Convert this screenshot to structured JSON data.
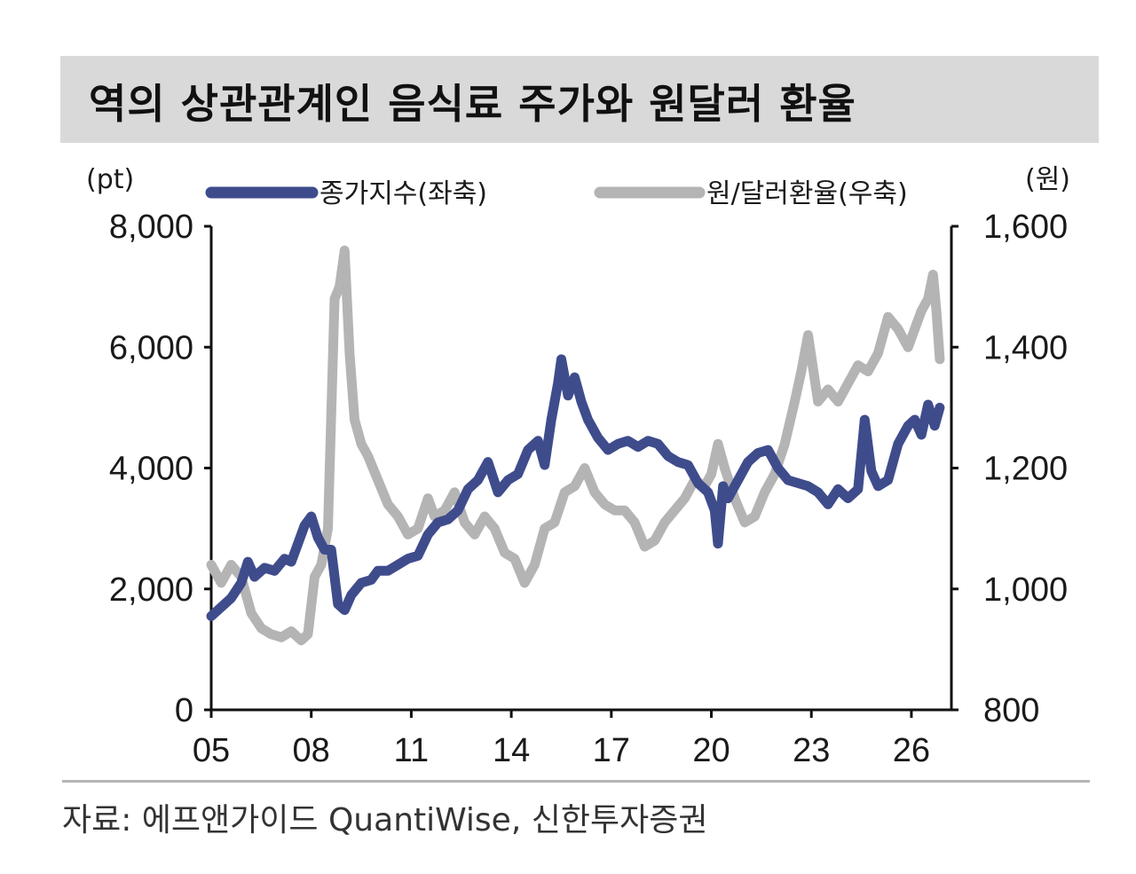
{
  "chart_data": {
    "type": "line",
    "title": "역의 상관관계인 음식료 주가와 원달러 환율",
    "left_unit": "(pt)",
    "right_unit": "(원)",
    "x_ticks": [
      "05",
      "08",
      "11",
      "14",
      "17",
      "20",
      "23",
      "26"
    ],
    "x_range": [
      2005,
      2027.2
    ],
    "left_axis": {
      "min": 0,
      "max": 8000,
      "ticks": [
        "0",
        "2,000",
        "4,000",
        "6,000",
        "8,000"
      ],
      "tick_values": [
        0,
        2000,
        4000,
        6000,
        8000
      ]
    },
    "right_axis": {
      "min": 800,
      "max": 1600,
      "ticks": [
        "800",
        "1,000",
        "1,200",
        "1,400",
        "1,600"
      ],
      "tick_values": [
        800,
        1000,
        1200,
        1400,
        1600
      ]
    },
    "grid": false,
    "legend_position": "top",
    "series": [
      {
        "name": "종가지수(좌축)",
        "axis": "left",
        "color": "#3f4c8c",
        "x": [
          2005.0,
          2005.3,
          2005.6,
          2005.9,
          2006.1,
          2006.3,
          2006.6,
          2006.9,
          2007.2,
          2007.4,
          2007.6,
          2007.8,
          2008.0,
          2008.2,
          2008.4,
          2008.6,
          2008.8,
          2009.0,
          2009.2,
          2009.5,
          2009.8,
          2010.0,
          2010.3,
          2010.6,
          2010.9,
          2011.2,
          2011.5,
          2011.8,
          2012.1,
          2012.4,
          2012.7,
          2013.0,
          2013.3,
          2013.6,
          2013.9,
          2014.2,
          2014.5,
          2014.8,
          2015.0,
          2015.2,
          2015.4,
          2015.5,
          2015.7,
          2015.9,
          2016.1,
          2016.3,
          2016.6,
          2016.9,
          2017.2,
          2017.5,
          2017.8,
          2018.1,
          2018.4,
          2018.7,
          2019.0,
          2019.3,
          2019.6,
          2019.9,
          2020.1,
          2020.2,
          2020.35,
          2020.5,
          2020.8,
          2021.1,
          2021.4,
          2021.7,
          2022.0,
          2022.3,
          2022.6,
          2022.9,
          2023.2,
          2023.5,
          2023.8,
          2024.1,
          2024.4,
          2024.6,
          2024.8,
          2025.0,
          2025.3,
          2025.6,
          2025.9,
          2026.1,
          2026.3,
          2026.5,
          2026.7,
          2026.85
        ],
        "values": [
          1550,
          1700,
          1850,
          2100,
          2450,
          2200,
          2350,
          2300,
          2500,
          2450,
          2750,
          3050,
          3200,
          2850,
          2650,
          2650,
          1750,
          1650,
          1900,
          2100,
          2150,
          2300,
          2300,
          2400,
          2500,
          2550,
          2900,
          3100,
          3150,
          3300,
          3650,
          3800,
          4100,
          3600,
          3800,
          3900,
          4300,
          4450,
          4050,
          4800,
          5400,
          5800,
          5200,
          5500,
          5100,
          4800,
          4500,
          4300,
          4400,
          4450,
          4350,
          4450,
          4400,
          4200,
          4100,
          4050,
          3750,
          3600,
          3300,
          2750,
          3700,
          3500,
          3800,
          4100,
          4250,
          4300,
          4000,
          3800,
          3750,
          3700,
          3600,
          3400,
          3650,
          3500,
          3650,
          4800,
          3950,
          3700,
          3800,
          4400,
          4700,
          4800,
          4550,
          5050,
          4700,
          5000
        ]
      },
      {
        "name": "원/달러환율(우축)",
        "axis": "right",
        "color": "#b4b4b4",
        "x": [
          2005.0,
          2005.3,
          2005.6,
          2005.9,
          2006.2,
          2006.5,
          2006.8,
          2007.1,
          2007.4,
          2007.7,
          2007.9,
          2008.1,
          2008.3,
          2008.5,
          2008.7,
          2008.85,
          2009.0,
          2009.15,
          2009.3,
          2009.5,
          2009.7,
          2010.0,
          2010.3,
          2010.6,
          2010.9,
          2011.2,
          2011.5,
          2011.7,
          2012.0,
          2012.3,
          2012.6,
          2012.9,
          2013.2,
          2013.5,
          2013.8,
          2014.1,
          2014.4,
          2014.7,
          2015.0,
          2015.3,
          2015.6,
          2015.9,
          2016.2,
          2016.5,
          2016.8,
          2017.1,
          2017.4,
          2017.7,
          2018.0,
          2018.3,
          2018.6,
          2018.9,
          2019.2,
          2019.5,
          2019.8,
          2020.0,
          2020.2,
          2020.4,
          2020.7,
          2021.0,
          2021.3,
          2021.6,
          2021.9,
          2022.2,
          2022.5,
          2022.7,
          2022.9,
          2023.2,
          2023.5,
          2023.8,
          2024.1,
          2024.4,
          2024.7,
          2025.0,
          2025.3,
          2025.6,
          2025.9,
          2026.1,
          2026.3,
          2026.5,
          2026.65,
          2026.75,
          2026.85
        ],
        "values": [
          1040,
          1010,
          1040,
          1020,
          960,
          935,
          925,
          920,
          930,
          915,
          925,
          1020,
          1040,
          1100,
          1480,
          1500,
          1560,
          1390,
          1280,
          1240,
          1220,
          1180,
          1140,
          1120,
          1090,
          1100,
          1150,
          1120,
          1130,
          1160,
          1110,
          1090,
          1120,
          1100,
          1060,
          1050,
          1010,
          1040,
          1100,
          1110,
          1160,
          1170,
          1200,
          1160,
          1140,
          1130,
          1130,
          1110,
          1070,
          1080,
          1110,
          1130,
          1150,
          1180,
          1170,
          1190,
          1240,
          1200,
          1150,
          1110,
          1120,
          1160,
          1190,
          1240,
          1310,
          1360,
          1420,
          1310,
          1330,
          1310,
          1340,
          1370,
          1360,
          1390,
          1450,
          1430,
          1400,
          1430,
          1460,
          1480,
          1520,
          1460,
          1380
        ]
      }
    ]
  },
  "source": "자료: 에프앤가이드 QuantiWise, 신한투자증권"
}
